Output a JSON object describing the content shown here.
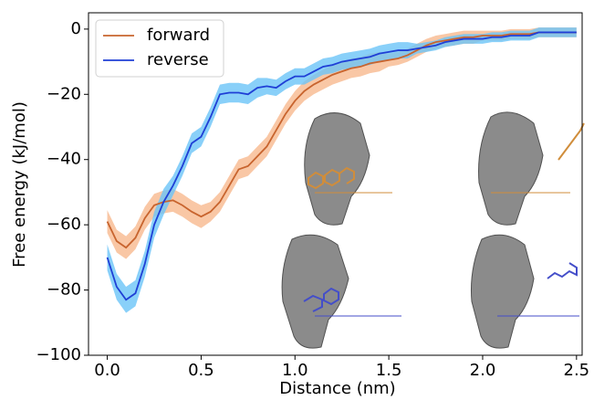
{
  "chart_data": {
    "type": "line",
    "xlabel": "Distance (nm)",
    "ylabel": "Free energy (kJ/mol)",
    "x": [
      0,
      0.05,
      0.1,
      0.15,
      0.2,
      0.25,
      0.3,
      0.35,
      0.4,
      0.45,
      0.5,
      0.55,
      0.6,
      0.65,
      0.7,
      0.75,
      0.8,
      0.85,
      0.9,
      0.95,
      1.0,
      1.05,
      1.1,
      1.15,
      1.2,
      1.25,
      1.3,
      1.35,
      1.4,
      1.45,
      1.5,
      1.55,
      1.6,
      1.65,
      1.7,
      1.75,
      1.8,
      1.85,
      1.9,
      1.95,
      2.0,
      2.05,
      2.1,
      2.15,
      2.2,
      2.25,
      2.3,
      2.35,
      2.4,
      2.45,
      2.5
    ],
    "series": [
      {
        "name": "forward",
        "color": "#c8642e",
        "band_color": "#f7b98f",
        "values": [
          -59,
          -65,
          -67,
          -64,
          -58,
          -54,
          -53,
          -52.5,
          -54,
          -56,
          -57.5,
          -56,
          -53,
          -48,
          -43,
          -42,
          -39,
          -36,
          -31,
          -26,
          -22,
          -19,
          -17,
          -15.5,
          -14,
          -13,
          -12,
          -11.5,
          -10.5,
          -10,
          -9.5,
          -9,
          -8,
          -6.5,
          -5,
          -4,
          -3.5,
          -3,
          -2.5,
          -2.5,
          -2,
          -2,
          -2,
          -1.5,
          -1.5,
          -1.5,
          -1,
          -1,
          -1,
          -1,
          -1
        ],
        "errors": [
          3.5,
          3.5,
          3.5,
          3.5,
          3.5,
          3.5,
          3.5,
          3.5,
          3.5,
          3.5,
          3.5,
          3,
          3,
          3,
          3,
          3,
          3,
          3,
          3,
          3,
          3,
          3,
          3,
          3,
          3,
          3,
          3,
          3,
          3,
          3,
          2,
          2,
          2,
          2,
          2,
          2,
          2,
          2,
          2,
          2,
          1.5,
          1.5,
          1.5,
          1.5,
          1.5,
          1.5,
          1.5,
          1.5,
          1.5,
          1.5,
          1.5
        ]
      },
      {
        "name": "reverse",
        "color": "#1f3fd6",
        "band_color": "#6cc4f7",
        "values": [
          -70,
          -79,
          -83,
          -81,
          -72,
          -60,
          -53,
          -48,
          -42,
          -35,
          -33,
          -27,
          -20,
          -19.5,
          -19.5,
          -20,
          -18,
          -17.5,
          -18,
          -16,
          -14.5,
          -14.5,
          -13,
          -11.5,
          -11,
          -10,
          -9.5,
          -9,
          -8.5,
          -7.5,
          -7,
          -6.5,
          -6.5,
          -6,
          -5.5,
          -5,
          -4,
          -3.5,
          -3,
          -3,
          -3,
          -2.5,
          -2.5,
          -2,
          -2,
          -2,
          -1,
          -1,
          -1,
          -1,
          -1
        ],
        "errors": [
          4,
          4,
          4,
          4,
          4,
          4,
          4,
          3,
          3,
          3,
          3,
          3,
          3,
          3,
          3,
          3,
          3,
          2.5,
          2.5,
          2.5,
          2.5,
          2.5,
          2.5,
          2.5,
          2.5,
          2.5,
          2.5,
          2.5,
          2.5,
          2.5,
          2.5,
          2.5,
          2.5,
          1.5,
          1.5,
          1.5,
          1.5,
          1.5,
          1.5,
          1.5,
          1.5,
          1.5,
          1.5,
          1.5,
          1.5,
          1.5,
          1.5,
          1.5,
          1.5,
          1.5,
          1.5
        ]
      }
    ],
    "xlim": [
      -0.1,
      2.53
    ],
    "xticks": [
      {
        "value": 0,
        "label": "0.0"
      },
      0.5,
      {
        "value": 1,
        "label": "1.0"
      },
      1.5,
      {
        "value": 2,
        "label": "2.0"
      },
      2.5
    ],
    "ylim": [
      -100,
      5
    ],
    "yticks": [
      {
        "value": -100,
        "label": "−100"
      },
      {
        "value": -80,
        "label": "−80"
      },
      {
        "value": -60,
        "label": "−60"
      },
      {
        "value": -40,
        "label": "−40"
      },
      {
        "value": -20,
        "label": "−20"
      },
      0
    ],
    "legend": "upper left"
  }
}
